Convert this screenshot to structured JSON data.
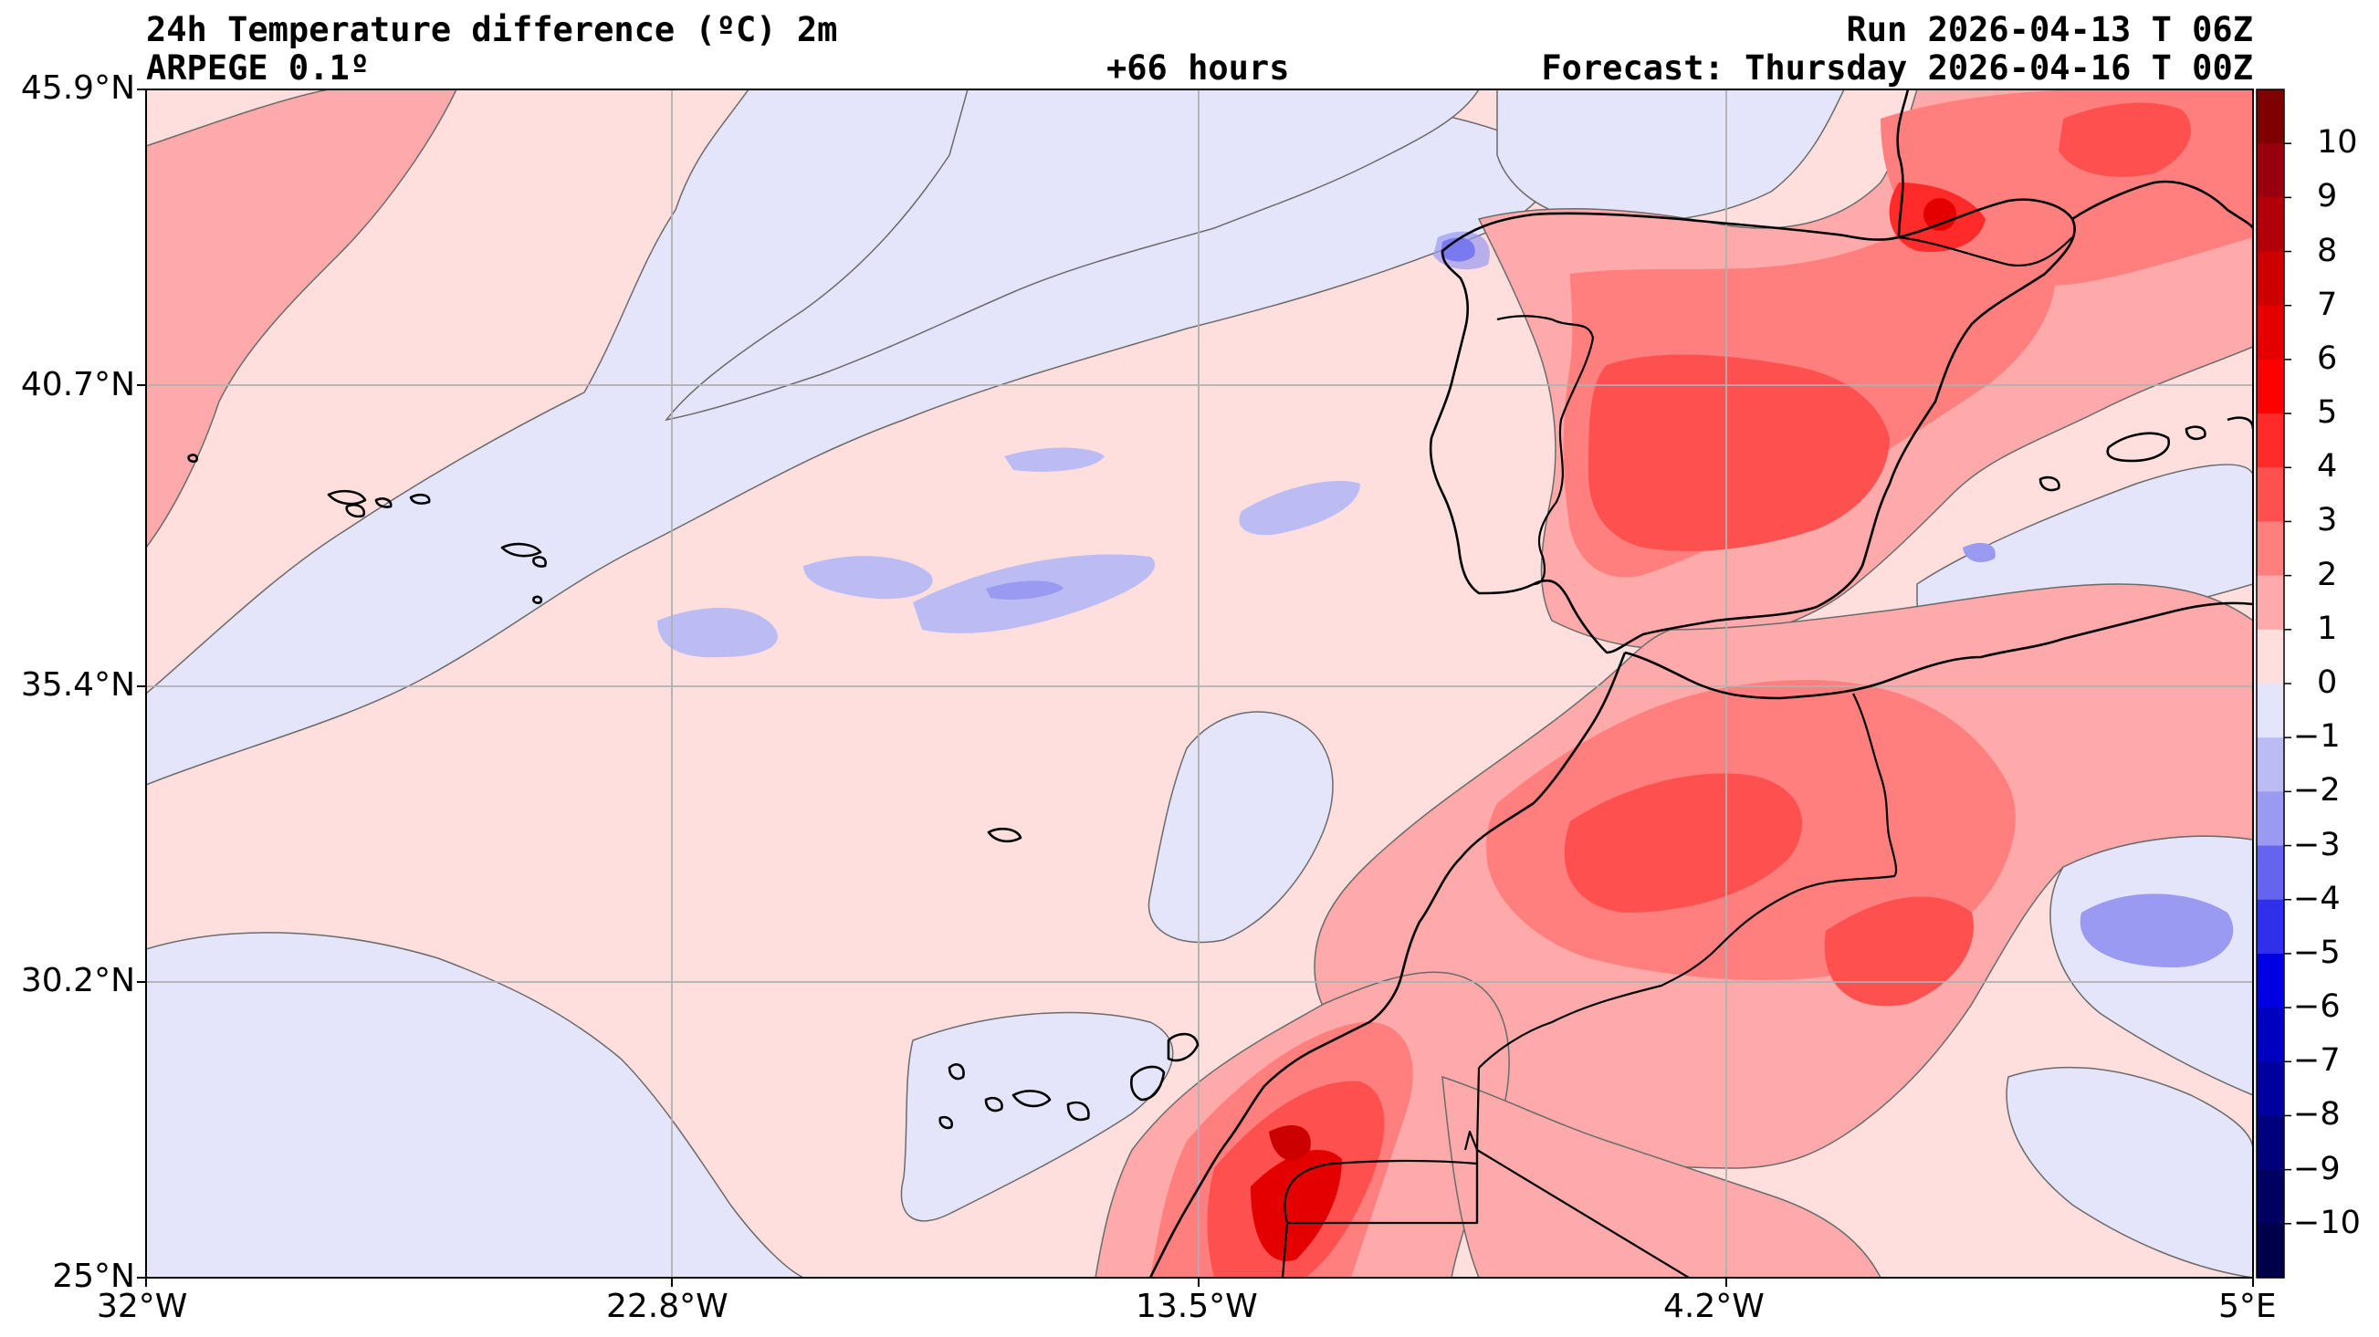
{
  "header": {
    "title": "24h Temperature difference (ºC) 2m",
    "model": "ARPEGE 0.1º",
    "lead_time": "+66 hours",
    "run": "Run 2026-04-13 T 06Z",
    "forecast": "Forecast: Thursday 2026-04-16 T 00Z"
  },
  "map": {
    "lon_range": [
      -32,
      5
    ],
    "lat_range": [
      25,
      45.9
    ],
    "lon_ticks": [
      "32°W",
      "22.8°W",
      "13.5°W",
      "4.2°W",
      "5°E"
    ],
    "lat_ticks": [
      "45.9°N",
      "40.7°N",
      "35.4°N",
      "30.2°N",
      "25°N"
    ]
  },
  "colorbar": {
    "labels": [
      "10",
      "9",
      "8",
      "7",
      "6",
      "5",
      "4",
      "3",
      "2",
      "1",
      "0",
      "−1",
      "−2",
      "−3",
      "−4",
      "−5",
      "−6",
      "−7",
      "−8",
      "−9",
      "−10"
    ],
    "colors": [
      "#7f0000",
      "#99000d",
      "#b2000a",
      "#cc0000",
      "#e50000",
      "#ff0000",
      "#ff2a2a",
      "#ff5050",
      "#ff7e7e",
      "#ffaaaa",
      "#ffdede",
      "#e4e4fa",
      "#bcbcf5",
      "#9a9af2",
      "#6464ee",
      "#3030ea",
      "#0000e0",
      "#0000c0",
      "#00009e",
      "#00007c",
      "#000060",
      "#00004a"
    ]
  }
}
